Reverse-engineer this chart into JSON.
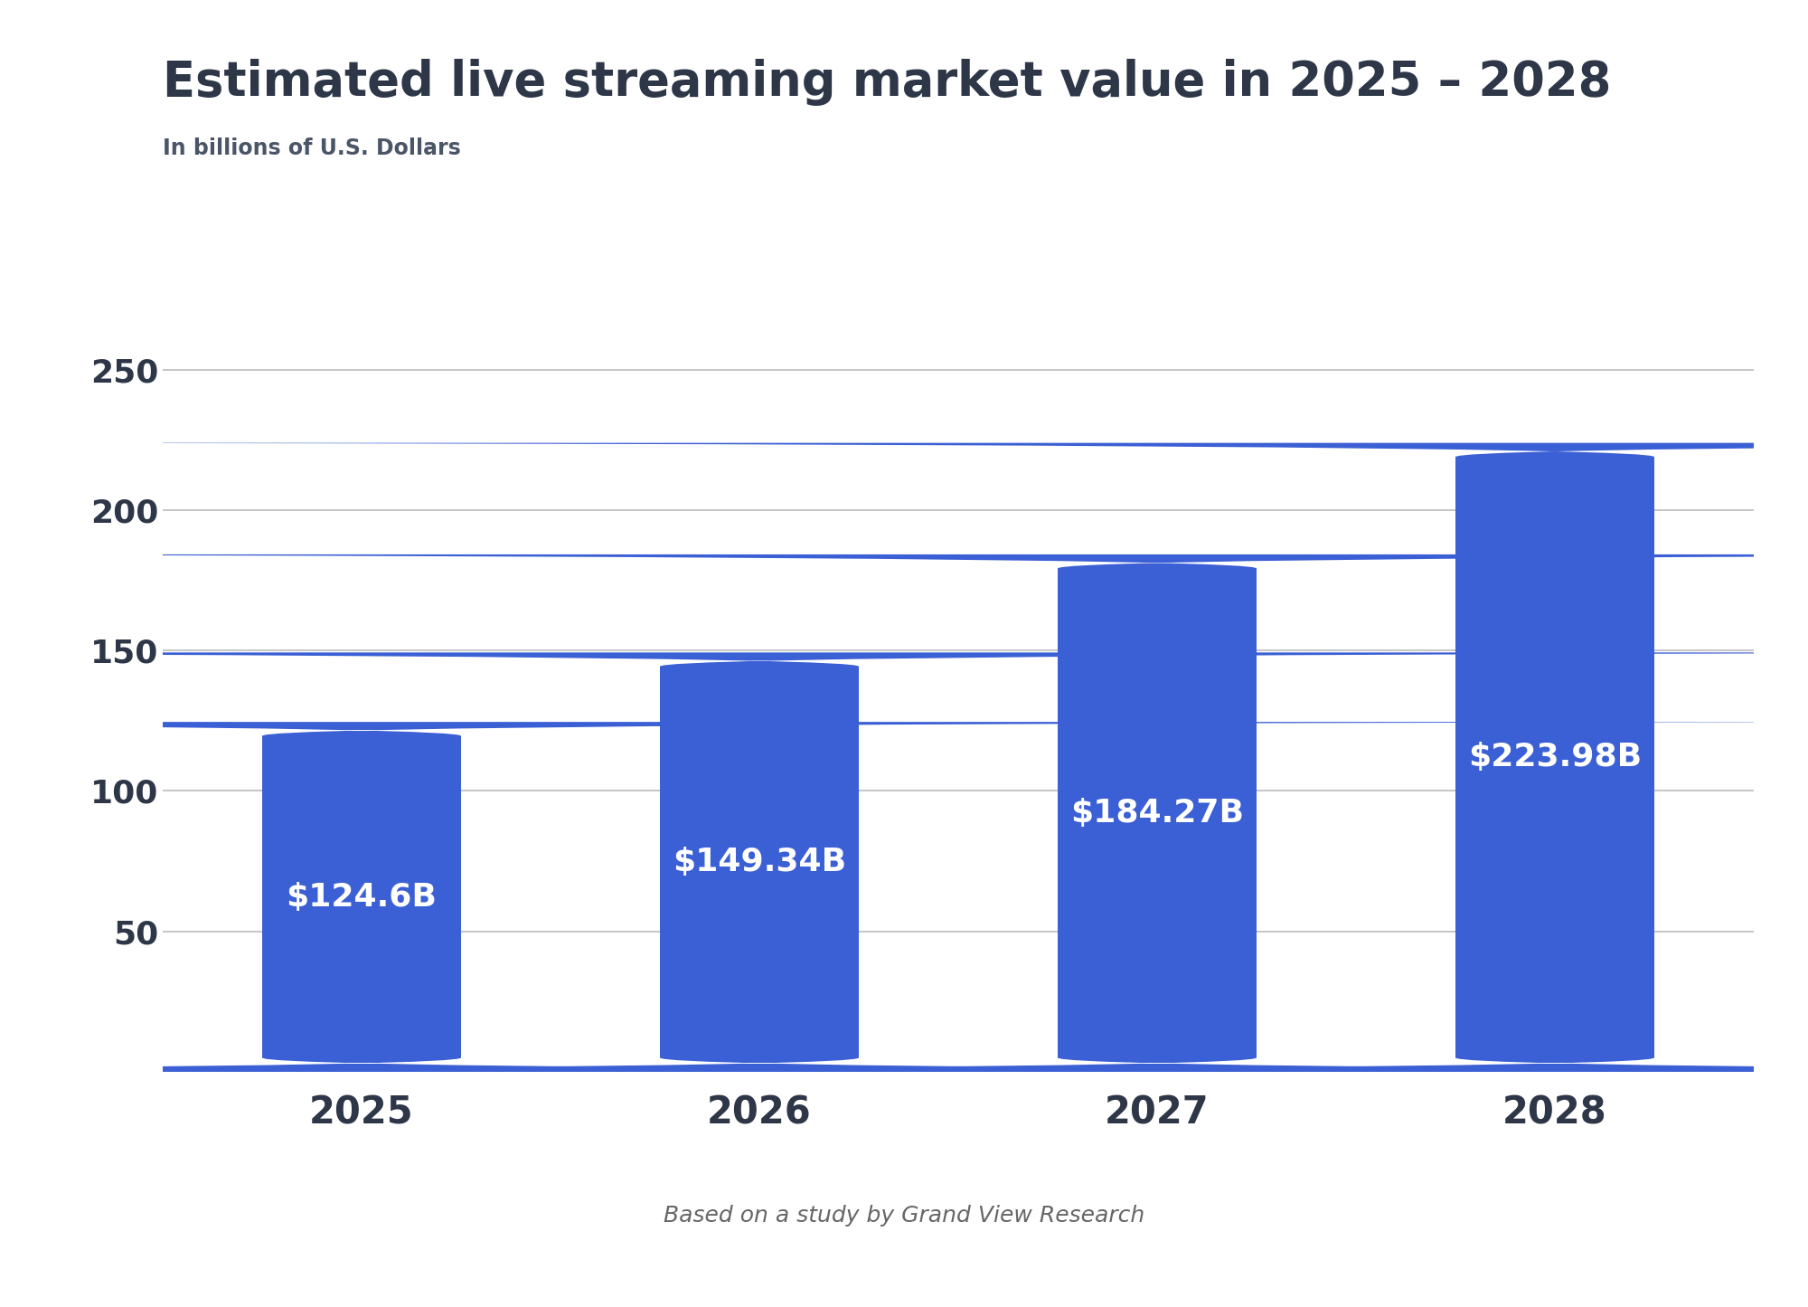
{
  "title": "Estimated live streaming market value in 2025 – 2028",
  "subtitle": "In billions of U.S. Dollars",
  "footnote": "Based on a study by Grand View Research",
  "categories": [
    "2025",
    "2026",
    "2027",
    "2028"
  ],
  "values": [
    124.6,
    149.34,
    184.27,
    223.98
  ],
  "labels": [
    "$124.6B",
    "$149.34B",
    "$184.27B",
    "$223.98B"
  ],
  "bar_color": "#3B5FD4",
  "background_color": "#ffffff",
  "title_color": "#2d3748",
  "subtitle_color": "#4a5568",
  "tick_color": "#2d3748",
  "grid_color": "#bbbbbb",
  "label_color": "#ffffff",
  "footnote_color": "#666666",
  "ylim": [
    0,
    270
  ],
  "yticks": [
    50,
    100,
    150,
    200,
    250
  ],
  "title_fontsize": 38,
  "subtitle_fontsize": 17,
  "tick_fontsize": 26,
  "xtick_fontsize": 30,
  "label_fontsize": 26,
  "footnote_fontsize": 18,
  "bar_width": 0.5,
  "rounding_size": 5.0
}
